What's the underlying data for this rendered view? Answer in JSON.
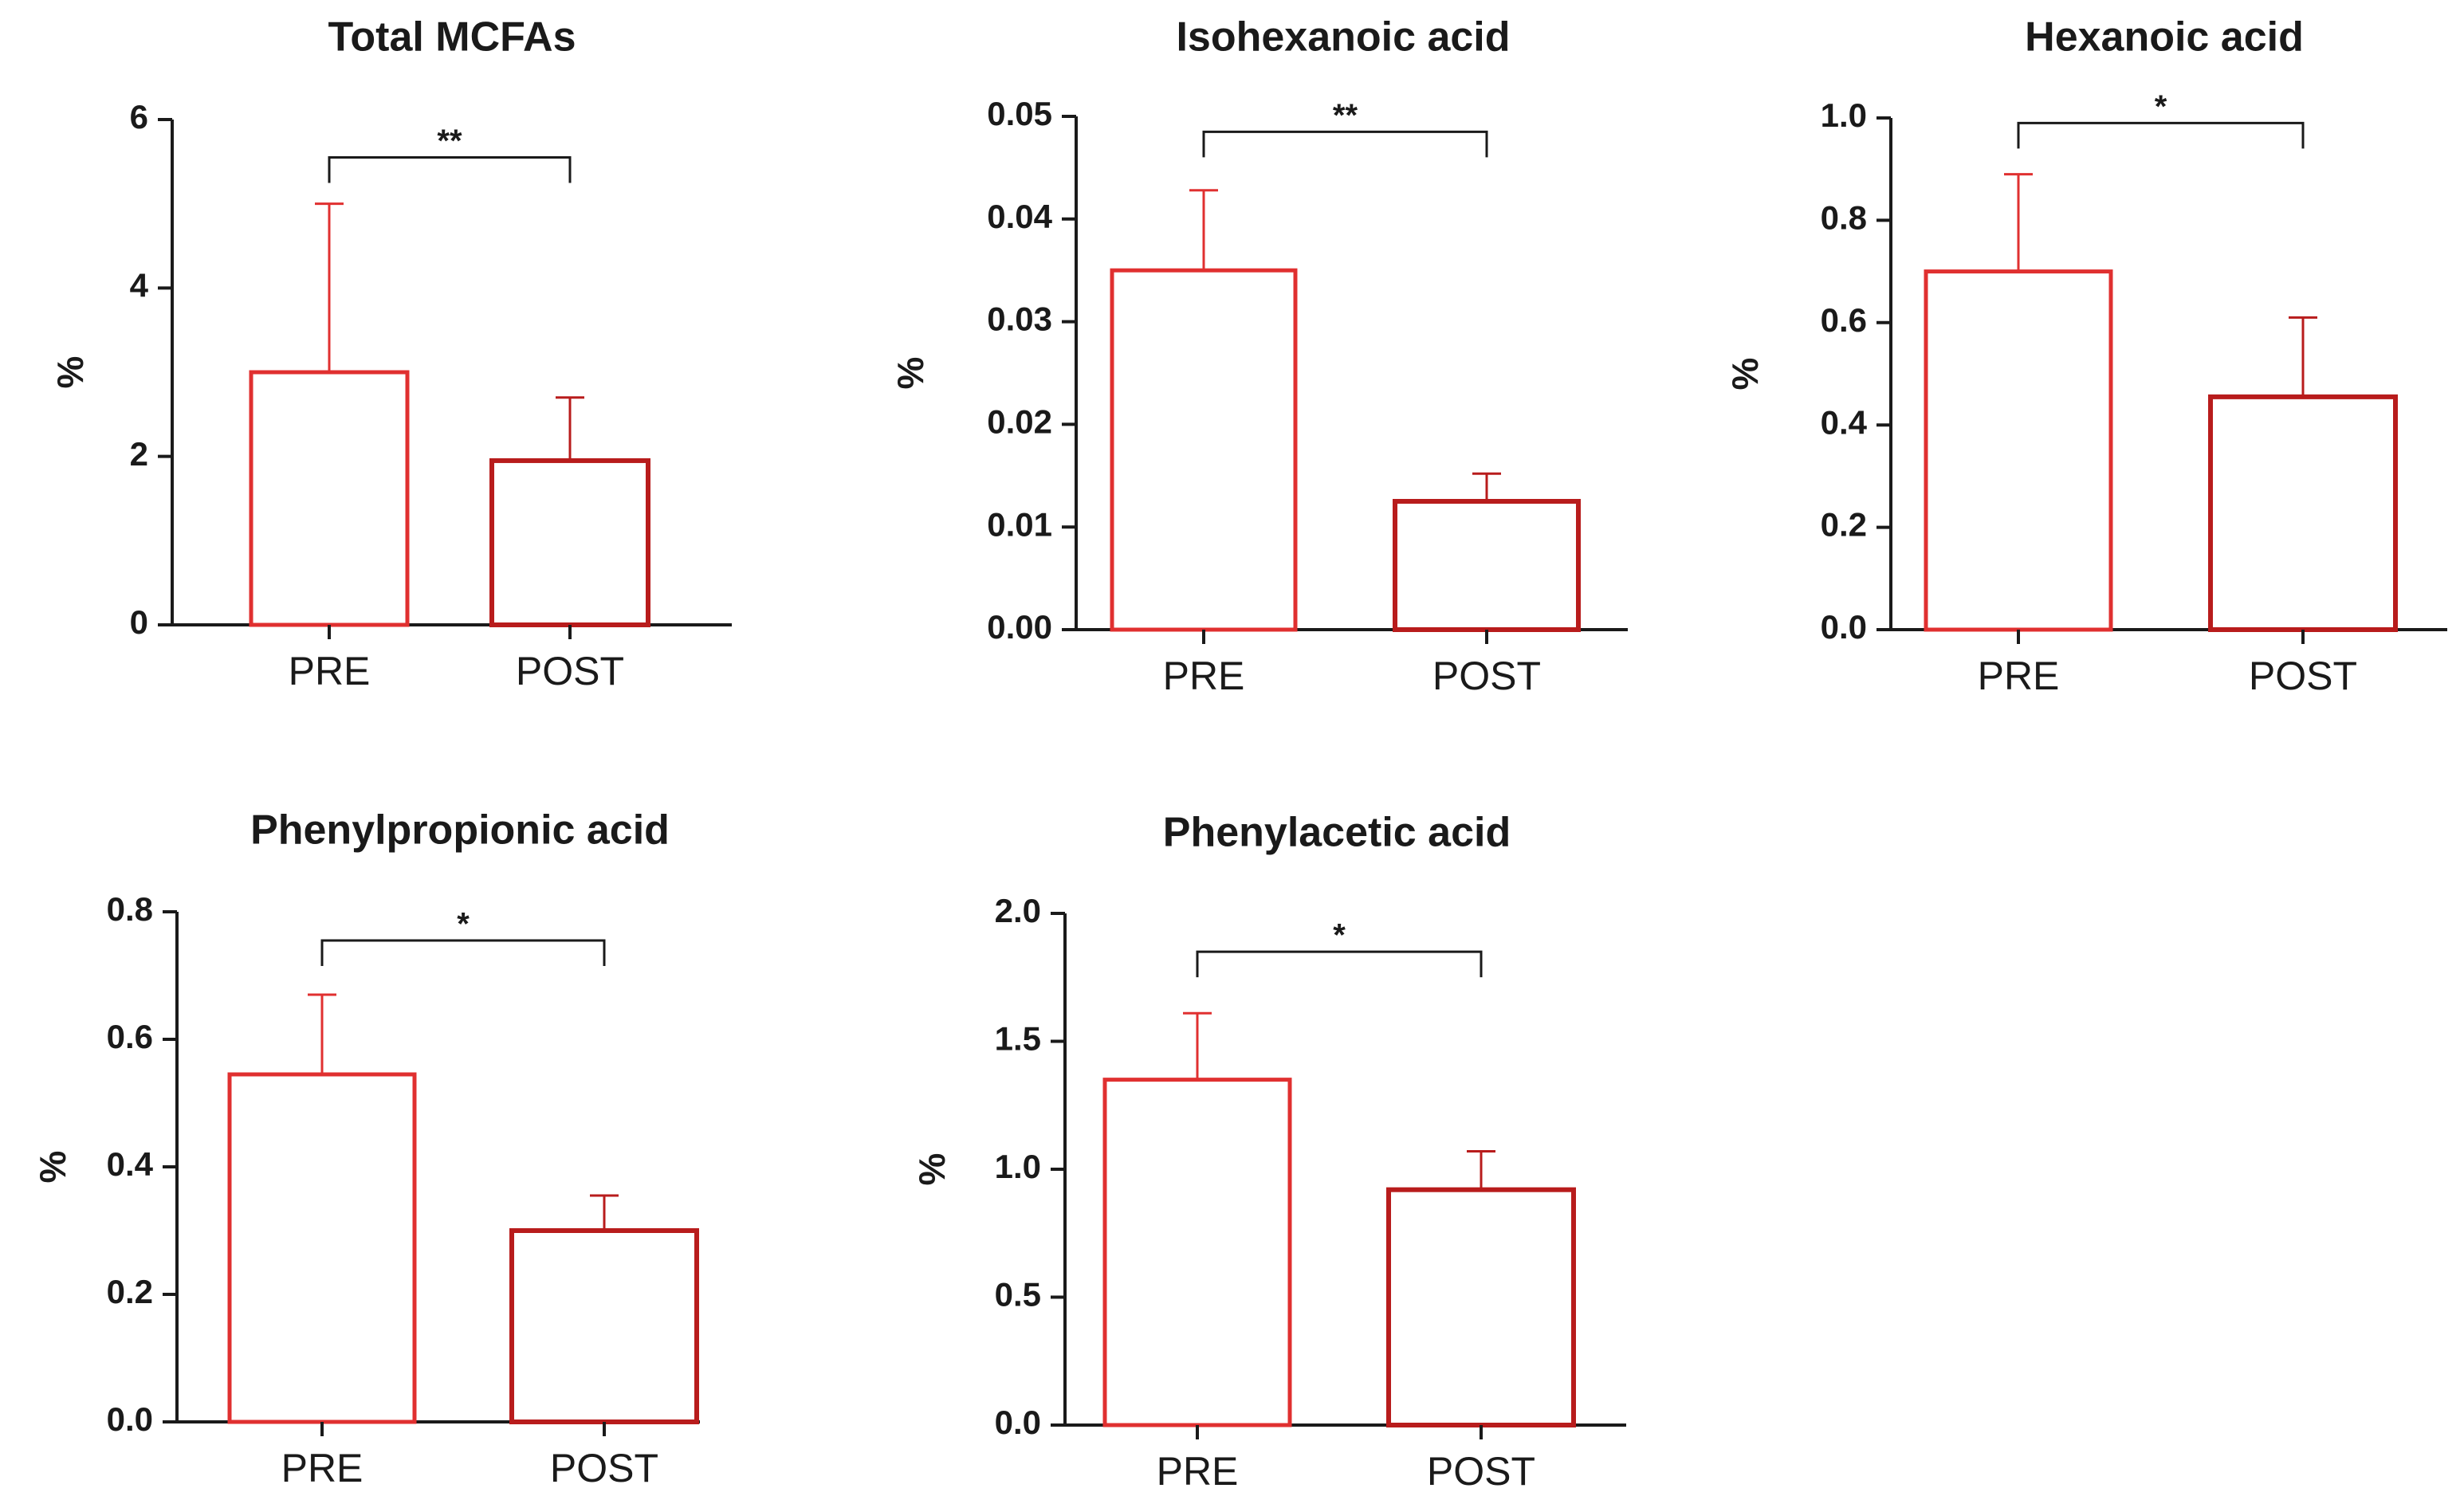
{
  "figure": {
    "bar_color": "#e03030",
    "axis_color": "#1a1a1a"
  },
  "chart_data": [
    {
      "type": "bar",
      "title": "Total MCFAs",
      "ylabel": "%",
      "xlabel": "",
      "categories": [
        "PRE",
        "POST"
      ],
      "values": [
        3.0,
        1.95
      ],
      "errors": [
        2.0,
        0.75
      ],
      "ylim": [
        0,
        6
      ],
      "yticks": [
        "0",
        "2",
        "4",
        "6"
      ],
      "ytick_values": [
        0,
        2,
        4,
        6
      ],
      "significance": "**",
      "bracket_value": 5.55
    },
    {
      "type": "bar",
      "title": "Isohexanoic acid",
      "ylabel": "%",
      "xlabel": "",
      "categories": [
        "PRE",
        "POST"
      ],
      "values": [
        0.035,
        0.0125
      ],
      "errors": [
        0.0078,
        0.0027
      ],
      "ylim": [
        0,
        0.05
      ],
      "yticks": [
        "0.00",
        "0.01",
        "0.02",
        "0.03",
        "0.04",
        "0.05"
      ],
      "ytick_values": [
        0,
        0.01,
        0.02,
        0.03,
        0.04,
        0.05
      ],
      "significance": "**",
      "bracket_value": 0.0485
    },
    {
      "type": "bar",
      "title": "Hexanoic acid",
      "ylabel": "%",
      "xlabel": "",
      "categories": [
        "PRE",
        "POST"
      ],
      "values": [
        0.7,
        0.455
      ],
      "errors": [
        0.19,
        0.155
      ],
      "ylim": [
        0,
        1.0
      ],
      "yticks": [
        "0.0",
        "0.2",
        "0.4",
        "0.6",
        "0.8",
        "1.0"
      ],
      "ytick_values": [
        0,
        0.2,
        0.4,
        0.6,
        0.8,
        1.0
      ],
      "significance": "*",
      "bracket_value": 0.99
    },
    {
      "type": "bar",
      "title": "Phenylpropionic acid",
      "ylabel": "%",
      "xlabel": "",
      "categories": [
        "PRE",
        "POST"
      ],
      "values": [
        0.545,
        0.3
      ],
      "errors": [
        0.125,
        0.055
      ],
      "ylim": [
        0,
        0.8
      ],
      "yticks": [
        "0.0",
        "0.2",
        "0.4",
        "0.6",
        "0.8"
      ],
      "ytick_values": [
        0,
        0.2,
        0.4,
        0.6,
        0.8
      ],
      "significance": "*",
      "bracket_value": 0.755
    },
    {
      "type": "bar",
      "title": "Phenylacetic acid",
      "ylabel": "%",
      "xlabel": "",
      "categories": [
        "PRE",
        "POST"
      ],
      "values": [
        1.35,
        0.92
      ],
      "errors": [
        0.26,
        0.15
      ],
      "ylim": [
        0,
        2.0
      ],
      "yticks": [
        "0.0",
        "0.5",
        "1.0",
        "1.5",
        "2.0"
      ],
      "ytick_values": [
        0,
        0.5,
        1.0,
        1.5,
        2.0
      ],
      "significance": "*",
      "bracket_value": 1.85
    }
  ]
}
